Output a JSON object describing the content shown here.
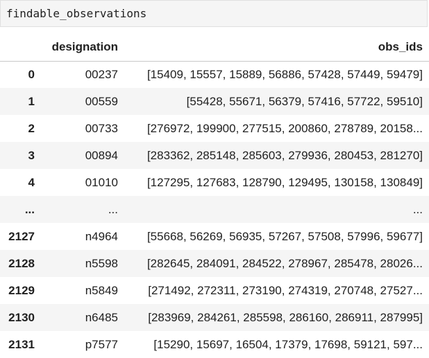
{
  "cell": {
    "code": "findable_observations"
  },
  "table": {
    "columns": [
      "",
      "designation",
      "obs_ids"
    ],
    "rows": [
      {
        "index": "0",
        "designation": "00237",
        "obs_ids": "[15409, 15557, 15889, 56886, 57428, 57449, 59479]"
      },
      {
        "index": "1",
        "designation": "00559",
        "obs_ids": "[55428, 55671, 56379, 57416, 57722, 59510]"
      },
      {
        "index": "2",
        "designation": "00733",
        "obs_ids": "[276972, 199900, 277515, 200860, 278789, 20158..."
      },
      {
        "index": "3",
        "designation": "00894",
        "obs_ids": "[283362, 285148, 285603, 279936, 280453, 281270]"
      },
      {
        "index": "4",
        "designation": "01010",
        "obs_ids": "[127295, 127683, 128790, 129495, 130158, 130849]"
      },
      {
        "index": "...",
        "designation": "...",
        "obs_ids": "..."
      },
      {
        "index": "2127",
        "designation": "n4964",
        "obs_ids": "[55668, 56269, 56935, 57267, 57508, 57996, 59677]"
      },
      {
        "index": "2128",
        "designation": "n5598",
        "obs_ids": "[282645, 284091, 284522, 278967, 285478, 28026..."
      },
      {
        "index": "2129",
        "designation": "n5849",
        "obs_ids": "[271492, 272311, 273190, 274319, 270748, 27527..."
      },
      {
        "index": "2130",
        "designation": "n6485",
        "obs_ids": "[283969, 284261, 285598, 286160, 286911, 287995]"
      },
      {
        "index": "2131",
        "designation": "p7577",
        "obs_ids": "[15290, 15697, 16504, 17379, 17698, 59121, 597..."
      }
    ]
  }
}
